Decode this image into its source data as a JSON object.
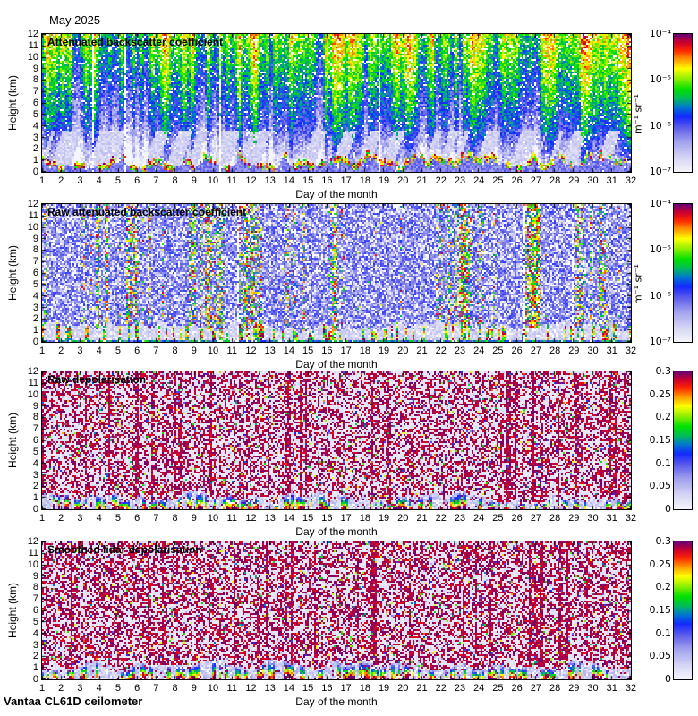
{
  "figure": {
    "month_title": "May 2025",
    "footer": "Vantaa CL61D ceilometer",
    "xlabel": "Day of the month",
    "ylabel": "Height (km)",
    "x_tick_labels": [
      1,
      2,
      3,
      4,
      5,
      6,
      7,
      8,
      9,
      10,
      11,
      12,
      13,
      14,
      15,
      16,
      17,
      18,
      19,
      20,
      21,
      22,
      23,
      24,
      25,
      26,
      27,
      28,
      29,
      30,
      31,
      32
    ],
    "y_tick_labels": [
      12,
      11,
      10,
      9,
      8,
      7,
      6,
      5,
      4,
      3,
      2,
      1,
      0
    ]
  },
  "colormap": {
    "description": "jet-like colormap: near-white lavender at minimum through blue, green, yellow, red to dark purple at maximum",
    "stops": [
      [
        0.0,
        245,
        245,
        252
      ],
      [
        0.1,
        214,
        214,
        244
      ],
      [
        0.22,
        160,
        160,
        238
      ],
      [
        0.32,
        92,
        92,
        235
      ],
      [
        0.4,
        20,
        40,
        255
      ],
      [
        0.47,
        0,
        120,
        205
      ],
      [
        0.53,
        0,
        185,
        95
      ],
      [
        0.6,
        0,
        225,
        0
      ],
      [
        0.68,
        150,
        240,
        0
      ],
      [
        0.75,
        255,
        255,
        0
      ],
      [
        0.82,
        255,
        150,
        0
      ],
      [
        0.88,
        255,
        40,
        0
      ],
      [
        0.94,
        205,
        0,
        45
      ],
      [
        1.0,
        105,
        0,
        115
      ]
    ]
  },
  "chart_data": [
    {
      "type": "heatmap",
      "title": "Attenuated backscatter coefficient",
      "xlabel": "Day of the month",
      "ylabel": "Height (km)",
      "x_range": [
        1,
        32
      ],
      "y_range_km": [
        0,
        12
      ],
      "colorbar": {
        "scale": "log",
        "min": "1e-7",
        "max": "1e-4",
        "tick_labels": [
          "10⁻⁴",
          "10⁻⁵",
          "10⁻⁶",
          "10⁻⁷"
        ],
        "unit": "m⁻¹ sr⁻¹"
      },
      "features": "Daily vertical columns of enhanced backscatter (green to red) through the full depth with white noise speckle increasing with height; dark-blue clear air around 2-4 km with wavy light patches; intermittent strong red/yellow aerosol and cloud layers below ~2 km; occasional thin white data gaps (e.g. near day 29).",
      "render": {
        "kind": "abs",
        "seed": 101
      }
    },
    {
      "type": "heatmap",
      "title": "Raw attenuated backscatter coefficient",
      "xlabel": "Day of the month",
      "ylabel": "Height (km)",
      "x_range": [
        1,
        32
      ],
      "y_range_km": [
        0,
        12
      ],
      "colorbar": {
        "scale": "log",
        "min": "1e-7",
        "max": "1e-4",
        "tick_labels": [
          "10⁻⁴",
          "10⁻⁵",
          "10⁻⁶",
          "10⁻⁷"
        ],
        "unit": "m⁻¹ sr⁻¹"
      },
      "features": "Noisy blue speckle background with dense white dropouts; scattered green/yellow/red high-signal streaks (e.g. days 13-18, 25-27); light lavender low-level band below ~2 km with intermittent strong coloured plumes.",
      "render": {
        "kind": "raw",
        "seed": 202
      }
    },
    {
      "type": "heatmap",
      "title": "Raw depolarisation",
      "xlabel": "Day of the month",
      "ylabel": "Height (km)",
      "x_range": [
        1,
        32
      ],
      "y_range_km": [
        0,
        12
      ],
      "colorbar": {
        "scale": "linear",
        "min": 0,
        "max": 0.3,
        "tick_labels": [
          "0.3",
          "0.25",
          "0.2",
          "0.15",
          "0.1",
          "0.05",
          "0"
        ],
        "unit": ""
      },
      "features": "Dense dark-magenta noise speckle on a near-white background above the boundary layer; sparse vertical magenta streaks; low-depolarisation white/blue band below ~1.5 km with occasional rainbow-coloured spikes (e.g. days 13, 19-20, 24).",
      "render": {
        "kind": "depol",
        "seed": 303,
        "purple": 0.4,
        "band_min": 0.45,
        "band_var": 1.25,
        "band_scale": 5
      }
    },
    {
      "type": "heatmap",
      "title": "Smoothed lidar depolarisation",
      "xlabel": "Day of the month",
      "ylabel": "Height (km)",
      "x_range": [
        1,
        32
      ],
      "y_range_km": [
        0,
        12
      ],
      "colorbar": {
        "scale": "linear",
        "min": 0,
        "max": 0.3,
        "tick_labels": [
          "0.3",
          "0.25",
          "0.2",
          "0.15",
          "0.1",
          "0.05",
          "0"
        ],
        "unit": ""
      },
      "features": "Similar to raw depolarisation but smoothed: dense magenta speckle aloft, a more continuous light-blue low-depolarisation band below ~2 km, and coloured spikes at the same days.",
      "render": {
        "kind": "depol",
        "seed": 404,
        "purple": 0.43,
        "band_min": 0.7,
        "band_var": 1.1,
        "band_scale": 9
      }
    }
  ]
}
